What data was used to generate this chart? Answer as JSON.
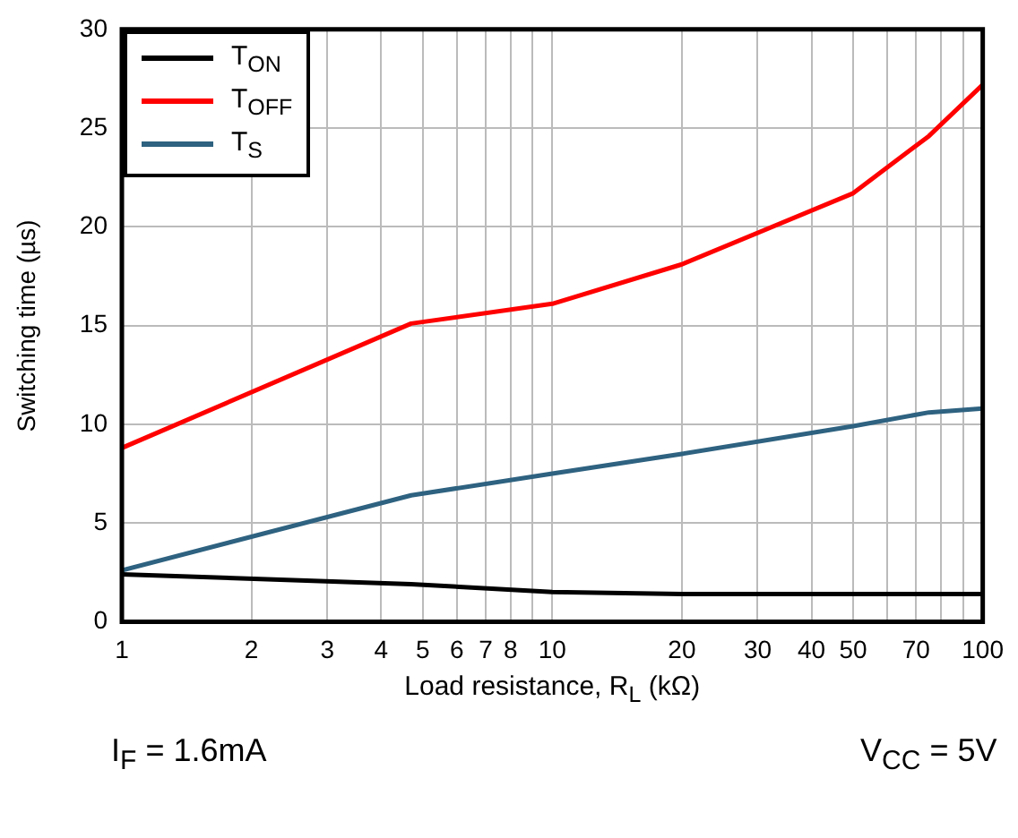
{
  "chart_data": {
    "type": "line",
    "xlabel": "Load resistance, R$_{L}$ (kΩ)",
    "ylabel": "Switching time (µs)",
    "log": "x",
    "xlim": [
      1,
      100
    ],
    "ylim": [
      0,
      30
    ],
    "xticks": [
      1,
      2,
      3,
      4,
      5,
      6,
      7,
      8,
      {
        "value": 9,
        "label": null
      },
      10,
      20,
      30,
      40,
      50,
      {
        "value": 60,
        "label": null
      },
      70,
      {
        "value": 80,
        "label": null
      },
      {
        "value": 90,
        "label": null
      },
      100
    ],
    "yticks": [
      0,
      5,
      10,
      15,
      20,
      25,
      30
    ],
    "grid": true,
    "legend": "top left",
    "marker": "none",
    "line_style": "solid",
    "series": [
      {
        "name": "T$_{ON}$",
        "color": "#000000",
        "x": [
          1,
          4.7,
          10,
          20,
          50,
          100
        ],
        "values": [
          2.4,
          1.9,
          1.5,
          1.4,
          1.4,
          1.4
        ]
      },
      {
        "name": "T$_{OFF}$",
        "color": "#ff0000",
        "x": [
          1,
          4.7,
          10,
          20,
          50,
          75,
          100
        ],
        "values": [
          8.8,
          15.1,
          16.1,
          18.1,
          21.7,
          24.6,
          27.2
        ]
      },
      {
        "name": "T$_{S}$",
        "color": "#2e6280",
        "x": [
          1,
          4.7,
          10,
          20,
          50,
          75,
          100
        ],
        "values": [
          2.6,
          6.4,
          7.5,
          8.5,
          9.9,
          10.6,
          10.8
        ]
      }
    ],
    "annotations": [
      "I$_{F}$ = 1.6mA",
      "V$_{CC}$ = 5V"
    ]
  }
}
